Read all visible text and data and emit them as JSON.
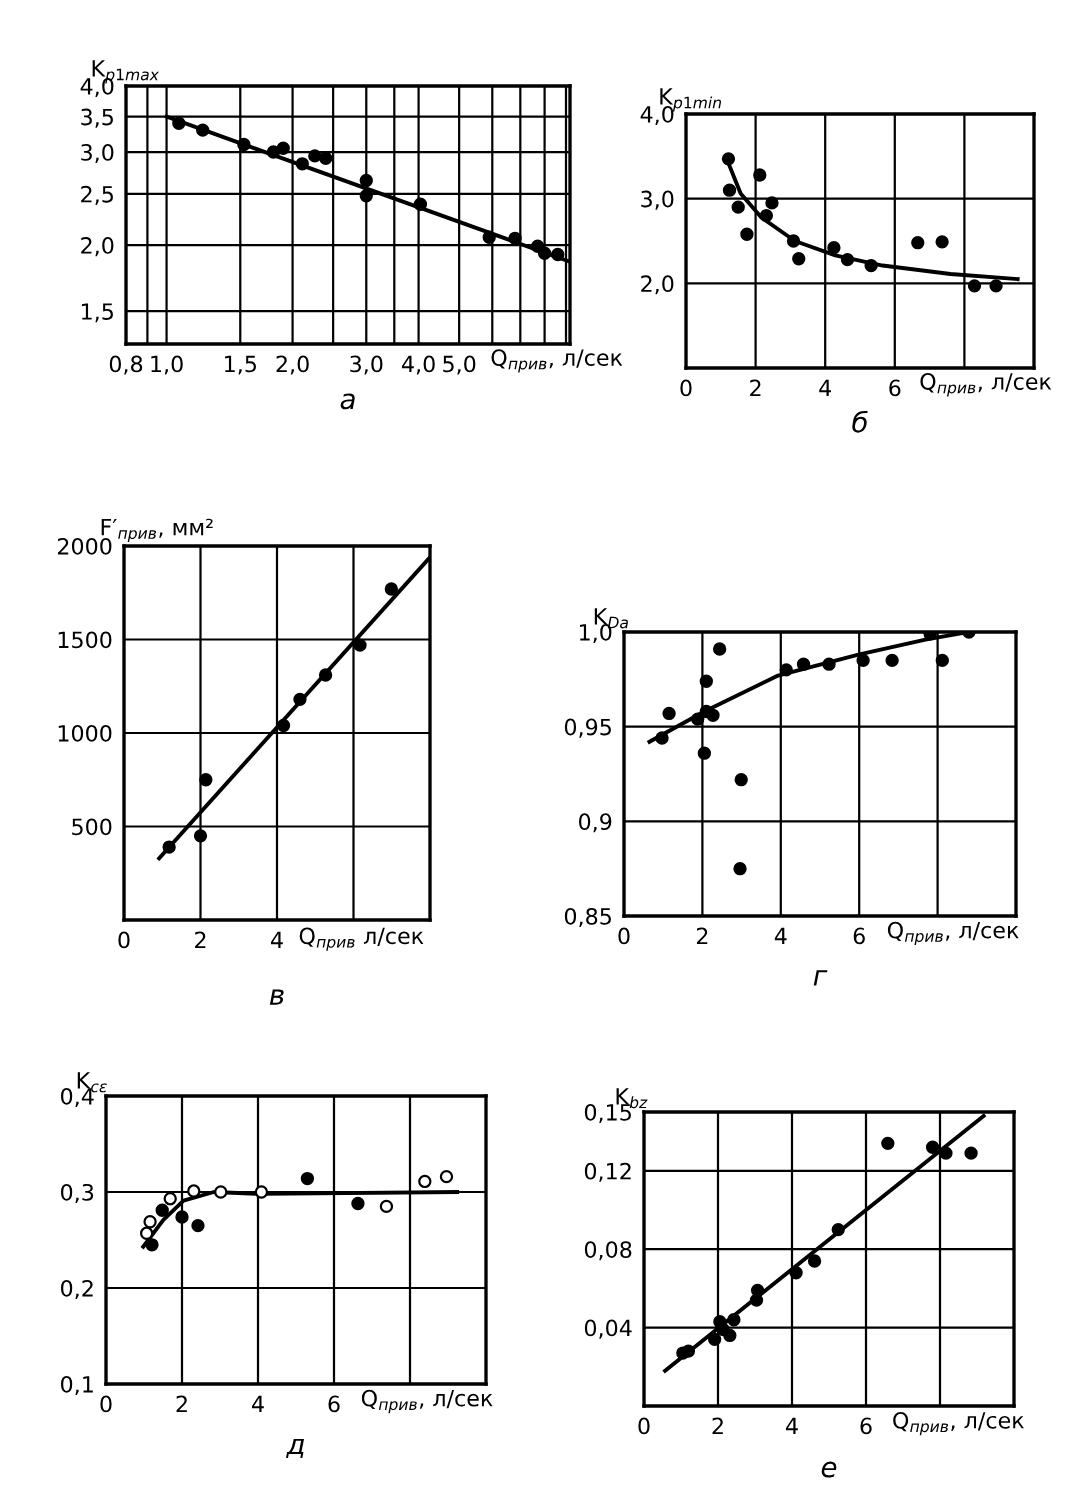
{
  "chart_data": [
    {
      "type": "scatter",
      "title": "а",
      "xlabel": "Q$_{прив}$, л/сек",
      "ylabel": "K$_{p1max}$",
      "log": "xy",
      "grid": true,
      "xlim": [
        0.8,
        9.2
      ],
      "ylim": [
        1.3,
        4.0
      ],
      "xticks": [
        {
          "value": 0.8,
          "label": "0,8"
        },
        {
          "value": 0.9,
          "label": null
        },
        {
          "value": 1.0,
          "label": "1,0"
        },
        {
          "value": 1.5,
          "label": "1,5"
        },
        {
          "value": 2.0,
          "label": "2,0"
        },
        {
          "value": 2.5,
          "label": null
        },
        {
          "value": 3.0,
          "label": "3,0"
        },
        {
          "value": 3.5,
          "label": null
        },
        {
          "value": 4.0,
          "label": "4,0"
        },
        {
          "value": 5.0,
          "label": "5,0"
        },
        {
          "value": 6,
          "label": null
        },
        {
          "value": 7,
          "label": null
        },
        {
          "value": 8,
          "label": null
        },
        {
          "value": 9,
          "label": null
        }
      ],
      "yticks": [
        {
          "value": 1.5,
          "label": "1,5"
        },
        {
          "value": 2.0,
          "label": "2,0"
        },
        {
          "value": 2.5,
          "label": "2,5"
        },
        {
          "value": 3.0,
          "label": "3,0"
        },
        {
          "value": 3.5,
          "label": "3,5"
        },
        {
          "value": 4.0,
          "label": "4,0"
        }
      ],
      "series": [
        {
          "type": "scatter",
          "marker": "circle",
          "color": "#000000",
          "x": [
            1.07,
            1.22,
            1.53,
            1.8,
            1.9,
            2.11,
            2.26,
            2.4,
            3.0,
            3.0,
            4.04,
            5.9,
            6.8,
            7.7,
            8.0,
            8.6
          ],
          "values": [
            3.4,
            3.3,
            3.1,
            3.0,
            3.05,
            2.85,
            2.95,
            2.92,
            2.65,
            2.48,
            2.39,
            2.07,
            2.06,
            1.99,
            1.93,
            1.92
          ]
        },
        {
          "type": "line",
          "marker": "none",
          "line_style": "solid",
          "color": "#000000",
          "x": [
            1.0,
            9.2
          ],
          "values": [
            3.5,
            1.86
          ]
        }
      ]
    },
    {
      "type": "scatter",
      "title": "б",
      "xlabel": "Q$_{прив}$, л/сек",
      "ylabel": "K$_{p1min}$",
      "grid": true,
      "xlim": [
        0,
        10
      ],
      "ylim": [
        1.0,
        4.0
      ],
      "xticks": [
        0,
        2,
        4,
        6,
        {
          "value": 8,
          "label": null
        }
      ],
      "yticks": [
        {
          "value": 2.0,
          "label": "2,0"
        },
        {
          "value": 3.0,
          "label": "3,0"
        },
        {
          "value": 4.0,
          "label": "4,0"
        }
      ],
      "series": [
        {
          "type": "scatter",
          "marker": "circle",
          "color": "#000000",
          "x": [
            1.22,
            1.25,
            1.5,
            1.75,
            2.12,
            2.31,
            2.47,
            3.09,
            3.24,
            4.25,
            4.64,
            5.32,
            6.66,
            7.36,
            8.29,
            8.91
          ],
          "values": [
            3.47,
            3.1,
            2.9,
            2.58,
            3.28,
            2.8,
            2.95,
            2.5,
            2.29,
            2.42,
            2.28,
            2.21,
            2.48,
            2.49,
            1.97,
            1.97
          ]
        },
        {
          "type": "line",
          "marker": "none",
          "line_style": "solid",
          "color": "#000000",
          "x": [
            1.15,
            1.57,
            2.16,
            3.13,
            4.29,
            5.65,
            7.6,
            9.53
          ],
          "values": [
            3.49,
            3.06,
            2.78,
            2.5,
            2.33,
            2.21,
            2.11,
            2.05
          ]
        }
      ]
    },
    {
      "type": "scatter",
      "title": "в",
      "xlabel": "Q$_{прив}$ л/сек",
      "ylabel": "F′$_{прив}$, мм²",
      "grid": true,
      "xlim": [
        0,
        8
      ],
      "ylim": [
        0,
        2000
      ],
      "xticks": [
        0,
        2,
        4,
        {
          "value": 6,
          "label": null
        }
      ],
      "yticks": [
        500,
        1000,
        1500,
        2000
      ],
      "series": [
        {
          "type": "scatter",
          "marker": "circle",
          "color": "#000000",
          "x": [
            1.18,
            2.0,
            2.14,
            4.17,
            4.6,
            5.27,
            6.17,
            6.99
          ],
          "values": [
            390,
            450,
            750,
            1040,
            1180,
            1310,
            1470,
            1770
          ]
        },
        {
          "type": "line",
          "marker": "none",
          "line_style": "solid",
          "color": "#000000",
          "x": [
            0.92,
            8.0
          ],
          "values": [
            330,
            1940
          ]
        }
      ]
    },
    {
      "type": "scatter",
      "title": "г",
      "xlabel": "Q$_{прив}$, л/сек",
      "ylabel": "K$_{Da}$",
      "grid": true,
      "xlim": [
        0,
        10
      ],
      "ylim": [
        0.85,
        1.0
      ],
      "xticks": [
        0,
        2,
        4,
        6,
        {
          "value": 8,
          "label": null
        }
      ],
      "yticks": [
        {
          "value": 0.85,
          "label": "0,85"
        },
        {
          "value": 0.9,
          "label": "0,9"
        },
        {
          "value": 0.95,
          "label": "0,95"
        },
        {
          "value": 1.0,
          "label": "1,0"
        }
      ],
      "series": [
        {
          "type": "scatter",
          "marker": "circle",
          "color": "#000000",
          "x": [
            0.97,
            1.15,
            1.88,
            2.05,
            2.1,
            2.1,
            2.27,
            2.44,
            2.99,
            2.96,
            4.14,
            4.58,
            5.23,
            6.1,
            6.84,
            7.81,
            8.12,
            8.8
          ],
          "values": [
            0.944,
            0.957,
            0.954,
            0.936,
            0.974,
            0.958,
            0.956,
            0.991,
            0.922,
            0.875,
            0.98,
            0.983,
            0.983,
            0.985,
            0.985,
            0.999,
            0.985,
            1.0
          ]
        },
        {
          "type": "line",
          "marker": "none",
          "line_style": "solid",
          "color": "#000000",
          "x": [
            0.65,
            2.05,
            3.93,
            5.98,
            7.69,
            8.8
          ],
          "values": [
            0.942,
            0.958,
            0.977,
            0.988,
            0.996,
            1.0
          ]
        }
      ]
    },
    {
      "type": "scatter",
      "title": "д",
      "xlabel": "Q$_{прив}$, л/сек",
      "ylabel": "K$_{cε}$",
      "grid": true,
      "xlim": [
        0,
        10
      ],
      "ylim": [
        0.1,
        0.4
      ],
      "xticks": [
        0,
        2,
        4,
        6,
        {
          "value": 8,
          "label": null
        }
      ],
      "yticks": [
        {
          "value": 0.1,
          "label": "0,1"
        },
        {
          "value": 0.2,
          "label": "0,2"
        },
        {
          "value": 0.3,
          "label": "0,3"
        },
        {
          "value": 0.4,
          "label": "0,4"
        }
      ],
      "series": [
        {
          "type": "scatter",
          "marker": "circle",
          "color": "#000000",
          "x": [
            1.21,
            1.48,
            2.0,
            2.42,
            5.3,
            6.63
          ],
          "values": [
            0.245,
            0.281,
            0.274,
            0.265,
            0.314,
            0.288
          ]
        },
        {
          "type": "scatter",
          "marker": "circle",
          "color": "#ffffff",
          "x": [
            1.07,
            1.16,
            1.69,
            2.31,
            3.02,
            4.09,
            7.38,
            8.39,
            8.96
          ],
          "values": [
            0.257,
            0.269,
            0.293,
            0.301,
            0.3,
            0.3,
            0.285,
            0.311,
            0.316
          ]
        },
        {
          "type": "line",
          "marker": "none",
          "line_style": "solid",
          "color": "#000000",
          "x": [
            0.98,
            1.51,
            2.04,
            2.84,
            4.09,
            9.24
          ],
          "values": [
            0.243,
            0.271,
            0.291,
            0.3,
            0.298,
            0.3
          ]
        }
      ]
    },
    {
      "type": "scatter",
      "title": "е",
      "xlabel": "Q$_{прив}$, л/сек",
      "ylabel": "K$_{bz}$",
      "grid": true,
      "xlim": [
        0,
        10
      ],
      "ylim": [
        0,
        0.15
      ],
      "xticks": [
        0,
        2,
        4,
        6,
        {
          "value": 8,
          "label": null
        }
      ],
      "yticks": [
        {
          "value": 0.04,
          "label": "0,04"
        },
        {
          "value": 0.08,
          "label": "0,08"
        },
        {
          "value": 0.12,
          "label": "0,12"
        },
        {
          "value": 0.15,
          "label": "0,15"
        }
      ],
      "series": [
        {
          "type": "scatter",
          "marker": "circle",
          "color": "#000000",
          "x": [
            1.05,
            1.2,
            1.91,
            2.05,
            2.14,
            2.32,
            2.43,
            3.07,
            3.04,
            4.11,
            4.61,
            5.25,
            6.59,
            7.8,
            8.16,
            8.84
          ],
          "values": [
            0.027,
            0.028,
            0.034,
            0.043,
            0.039,
            0.036,
            0.044,
            0.059,
            0.054,
            0.068,
            0.074,
            0.09,
            0.134,
            0.132,
            0.129,
            0.129
          ]
        },
        {
          "type": "line",
          "marker": "none",
          "line_style": "solid",
          "color": "#000000",
          "x": [
            0.57,
            9.18
          ],
          "values": [
            0.018,
            0.148
          ]
        }
      ]
    }
  ]
}
